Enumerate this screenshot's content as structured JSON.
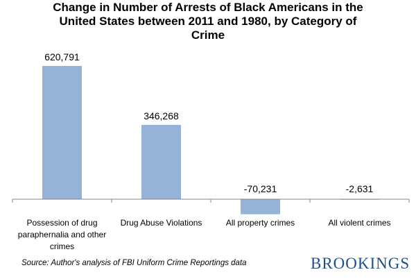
{
  "chart_data": {
    "type": "bar",
    "title": "Change in Number of Arrests of Black Americans in the United States between 2011 and 1980, by Category of Crime",
    "categories": [
      "Possession of drug paraphernalia and other crimes",
      "Drug Abuse Violations",
      "All property crimes",
      "All violent crimes"
    ],
    "values": [
      620791,
      346268,
      -70231,
      -2631
    ],
    "data_labels": [
      "620,791",
      "346,268",
      "-70,231",
      "-2,631"
    ],
    "xlabel": "",
    "ylabel": "",
    "ylim": [
      -100000,
      620791
    ],
    "grid": false,
    "bar_color": "#95b3d7",
    "axis_color": "#868686"
  },
  "source": "Source: Author's analysis of FBI Uniform Crime Reportings data",
  "brand": "BROOKINGS"
}
